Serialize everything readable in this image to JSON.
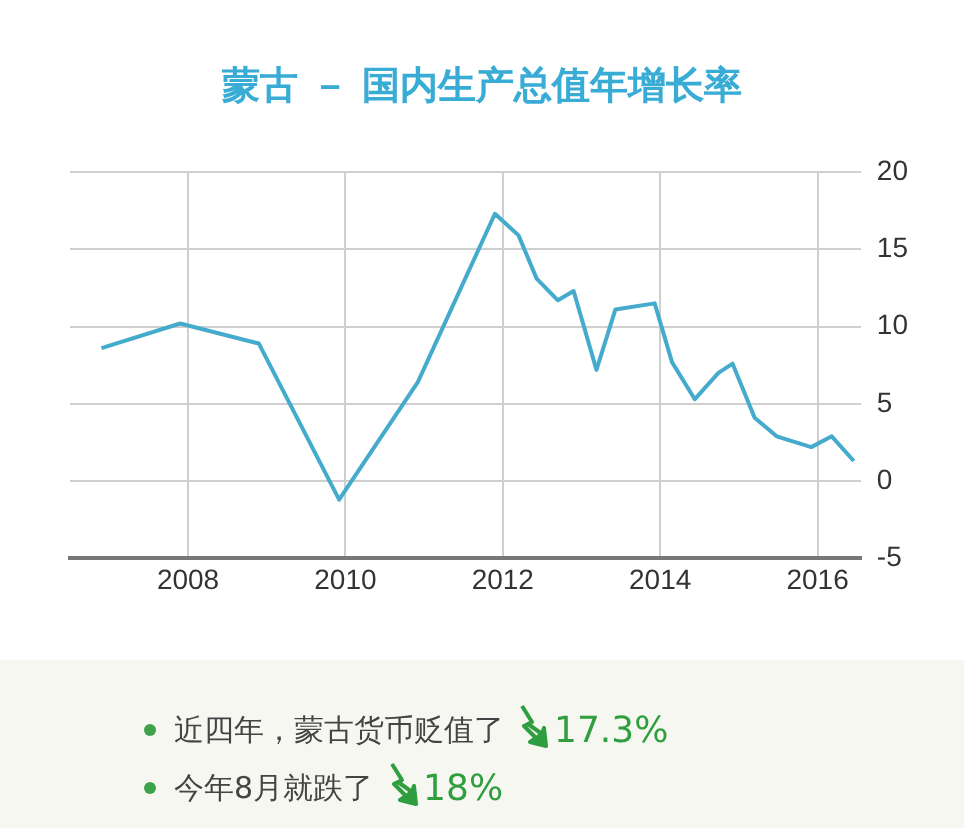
{
  "chart_data": {
    "type": "line",
    "title": "蒙古 － 国内生产总值年增长率",
    "x": [
      2006.9,
      2007.9,
      2008.9,
      2009.92,
      2010.92,
      2011.9,
      2012.2,
      2012.43,
      2012.7,
      2012.9,
      2013.19,
      2013.43,
      2013.93,
      2014.15,
      2014.44,
      2014.74,
      2014.92,
      2015.2,
      2015.48,
      2015.92,
      2016.18,
      2016.46
    ],
    "values": [
      8.6,
      10.2,
      8.9,
      -1.2,
      6.4,
      17.3,
      15.9,
      13.1,
      11.7,
      12.3,
      7.2,
      11.1,
      11.5,
      7.7,
      5.3,
      7.0,
      7.6,
      4.1,
      2.9,
      2.2,
      2.9,
      1.3
    ],
    "color": "#45abcc",
    "xlim": [
      2006.5,
      2016.55
    ],
    "xticks": [
      2008,
      2010,
      2012,
      2014,
      2016
    ],
    "ylim": [
      -5,
      20
    ],
    "yticks": [
      -5,
      0,
      5,
      10,
      15,
      20
    ],
    "grid": true,
    "legend": false,
    "marker": "none",
    "annotations": [
      "近四年，蒙古货币贬值了 17.3%",
      "今年8月就跌了 18%"
    ]
  }
}
